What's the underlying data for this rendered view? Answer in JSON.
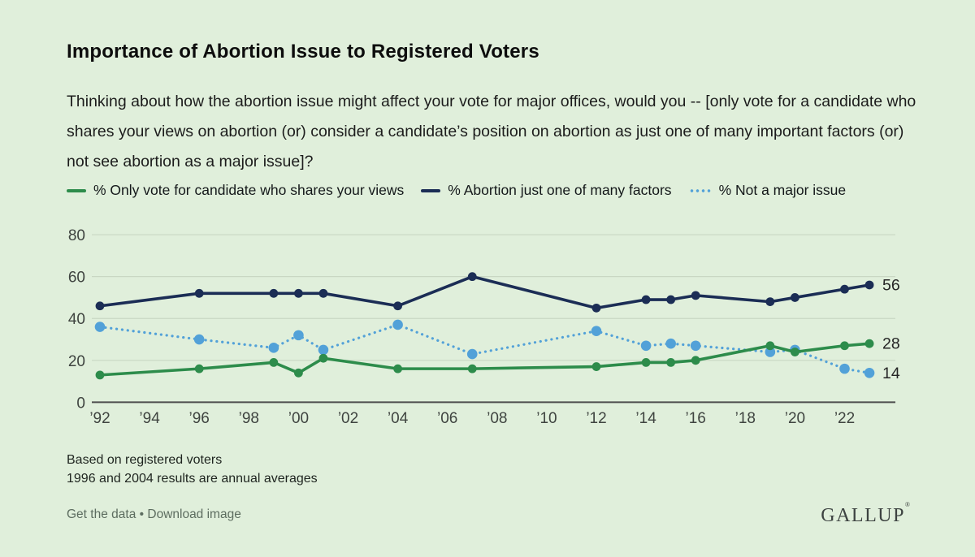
{
  "header": {
    "title": "Importance of Abortion Issue to Registered Voters",
    "subtitle": "Thinking about how the abortion issue might affect your vote for major offices, would you -- [only vote for a candidate who shares your views on abortion (or) consider a candidate’s position on abortion as just one of many important factors (or) not see abortion as a major issue]?"
  },
  "chart_data": {
    "type": "line",
    "x": [
      1992,
      1996,
      1999,
      2000,
      2001,
      2004,
      2007,
      2012,
      2014,
      2015,
      2016,
      2019,
      2020,
      2022,
      2023
    ],
    "series": [
      {
        "name": "only-vote-shares-views",
        "legend_label": "% Only vote for candidate who shares your views",
        "color": "#2d8c4b",
        "line_style": "solid",
        "values": [
          13,
          16,
          19,
          14,
          21,
          16,
          16,
          17,
          19,
          19,
          20,
          27,
          24,
          27,
          28
        ],
        "end_label": "28"
      },
      {
        "name": "abortion-one-of-many-factors",
        "legend_label": "% Abortion just one of many factors",
        "color": "#1b2d55",
        "line_style": "solid",
        "values": [
          46,
          52,
          52,
          52,
          52,
          46,
          60,
          45,
          49,
          49,
          51,
          48,
          50,
          54,
          56
        ],
        "end_label": "56"
      },
      {
        "name": "not-a-major-issue",
        "legend_label": "% Not a major issue",
        "color": "#52a1d8",
        "line_style": "dotted",
        "values": [
          36,
          30,
          26,
          32,
          25,
          37,
          23,
          34,
          27,
          28,
          27,
          24,
          25,
          16,
          14
        ],
        "end_label": "14"
      }
    ],
    "x_ticks": [
      {
        "year": 1992,
        "label": "’92"
      },
      {
        "year": 1994,
        "label": "’94"
      },
      {
        "year": 1996,
        "label": "’96"
      },
      {
        "year": 1998,
        "label": "’98"
      },
      {
        "year": 2000,
        "label": "’00"
      },
      {
        "year": 2002,
        "label": "’02"
      },
      {
        "year": 2004,
        "label": "’04"
      },
      {
        "year": 2006,
        "label": "’06"
      },
      {
        "year": 2008,
        "label": "’08"
      },
      {
        "year": 2010,
        "label": "’10"
      },
      {
        "year": 2012,
        "label": "’12"
      },
      {
        "year": 2014,
        "label": "’14"
      },
      {
        "year": 2016,
        "label": "’16"
      },
      {
        "year": 2018,
        "label": "’18"
      },
      {
        "year": 2020,
        "label": "’20"
      },
      {
        "year": 2022,
        "label": "’22"
      }
    ],
    "y_ticks": [
      0,
      20,
      40,
      60,
      80
    ],
    "ylim": [
      0,
      88
    ],
    "grid": "horizontal",
    "legend_position": "top"
  },
  "footnotes": {
    "line1": "Based on registered voters",
    "line2": "1996 and 2004 results are annual averages"
  },
  "footer": {
    "get_data_label": "Get the data",
    "separator": "•",
    "download_label": "Download image",
    "logo": "GALLUP",
    "logo_mark": "®"
  },
  "colors": {
    "background": "#e0efdb",
    "gridline": "#c9d7c3",
    "axis_line": "#4d4d4d",
    "tick_label": "#3f4440",
    "end_label": "#262626"
  }
}
